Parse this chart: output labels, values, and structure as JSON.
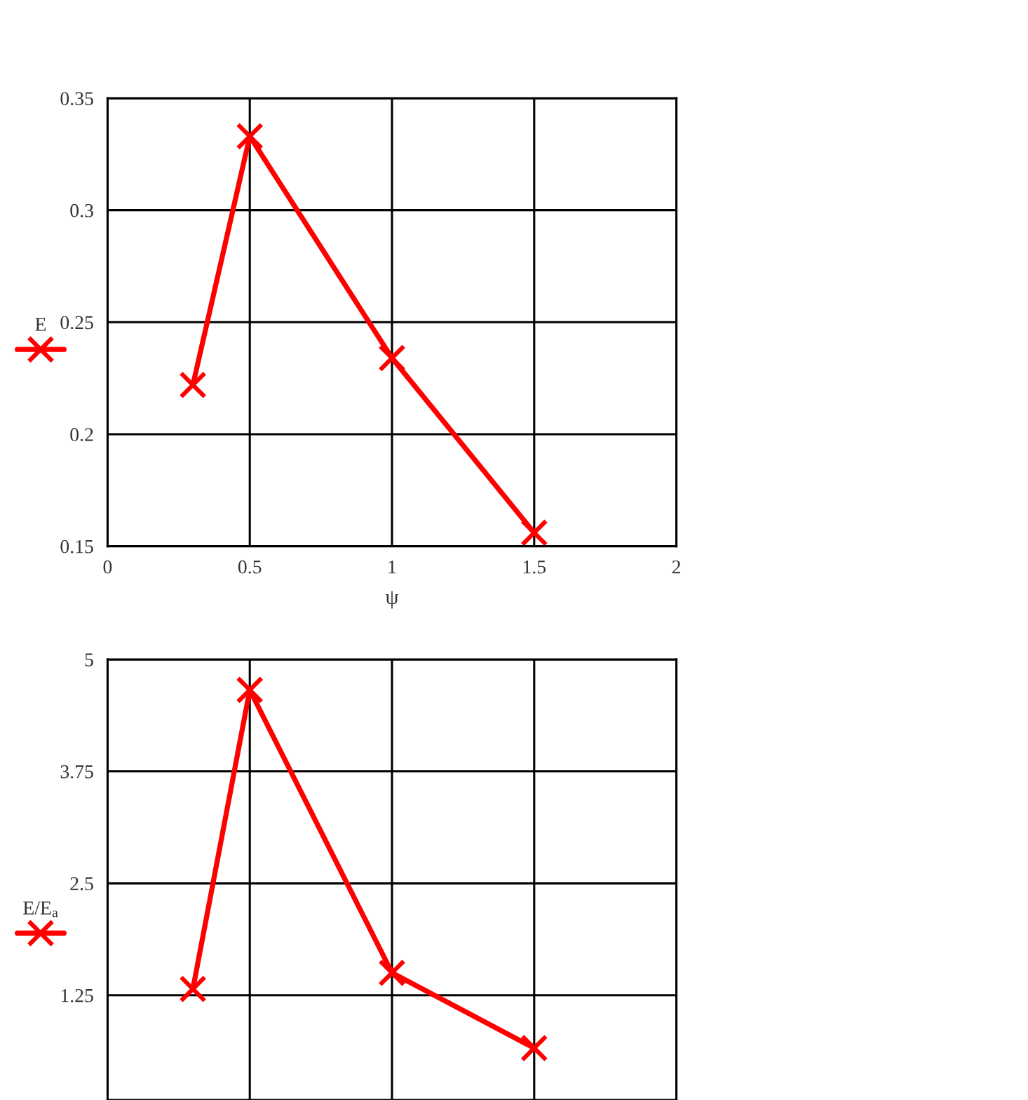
{
  "chart_data": [
    {
      "type": "line",
      "xlabel": "ψ",
      "x": [
        0.3,
        0.5,
        1,
        1.5
      ],
      "series": [
        {
          "name": "E",
          "color": "#ff0000",
          "values": [
            0.222,
            0.333,
            0.234,
            0.156
          ]
        }
      ],
      "xlim": [
        0,
        2
      ],
      "ylim": [
        0.15,
        0.35
      ],
      "xticks": [
        0,
        0.5,
        1,
        1.5,
        2
      ],
      "yticks": [
        0.15,
        0.2,
        0.25,
        0.3,
        0.35
      ],
      "grid": true,
      "legend": "left",
      "marker": "cross",
      "line_style": "solid"
    },
    {
      "type": "line",
      "x": [
        0.3,
        0.5,
        1,
        1.5
      ],
      "series": [
        {
          "name": "E/E$_{a}$",
          "color": "#ff0000",
          "values": [
            1.32,
            4.66,
            1.5,
            0.66
          ]
        }
      ],
      "xlim": [
        0,
        2
      ],
      "ylim": [
        0.08,
        5
      ],
      "xticks": [
        {
          "value": 0,
          "label": null
        },
        {
          "value": 0.5,
          "label": null
        },
        {
          "value": 1,
          "label": null
        },
        {
          "value": 1.5,
          "label": null
        },
        {
          "value": 2,
          "label": null
        }
      ],
      "yticks": [
        1.25,
        2.5,
        3.75,
        5
      ],
      "tick_labels": "y",
      "grid": true,
      "legend": "left",
      "marker": "cross",
      "line_style": "solid"
    }
  ]
}
